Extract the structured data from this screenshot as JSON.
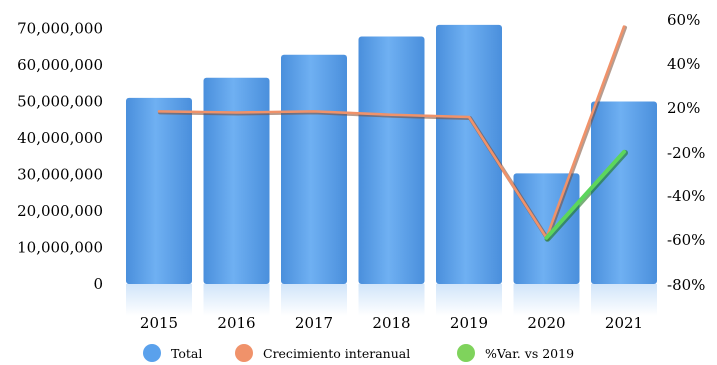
{
  "chart_data": {
    "type": "bar",
    "categories": [
      "2015",
      "2016",
      "2017",
      "2018",
      "2019",
      "2020",
      "2021"
    ],
    "series": [
      {
        "name": "Total",
        "type": "bar",
        "axis": "left",
        "color": "#5aa1ec",
        "values": [
          51000000,
          56500000,
          62800000,
          67800000,
          71000000,
          30300000,
          50000000
        ]
      },
      {
        "name": "Crecimiento interanual",
        "type": "line",
        "axis": "right",
        "color": "#f0926a",
        "x": [
          "2015",
          "2016",
          "2017",
          "2018",
          "2019",
          "2020",
          "2021"
        ],
        "values": [
          17,
          16,
          17,
          14,
          12,
          -59,
          57
        ]
      },
      {
        "name": "%Var. vs 2019",
        "type": "line",
        "axis": "right",
        "color": "#5cd65c",
        "x": [
          "2020",
          "2021"
        ],
        "values": [
          -59,
          -19
        ]
      }
    ],
    "y_left": {
      "ticks": [
        "0",
        "10,000,000",
        "20,000,000",
        "30,000,000",
        "40,000,000",
        "50,000,000",
        "60,000,000",
        "70,000,000"
      ],
      "tick_values": [
        0,
        10000000,
        20000000,
        30000000,
        40000000,
        50000000,
        60000000,
        70000000
      ]
    },
    "y_right": {
      "ticks": [
        "-80%",
        "-60%",
        "-40%",
        "-20%",
        "20%",
        "40%",
        "60%"
      ],
      "tick_values": [
        -80,
        -60,
        -40,
        -20,
        20,
        40,
        60
      ]
    },
    "legend": {
      "position": "bottom",
      "items": [
        {
          "label": "Total",
          "color": "#5aa1ec"
        },
        {
          "label": "Crecimiento interanual",
          "color": "#f0926a"
        },
        {
          "label": "%Var. vs 2019",
          "color": "#7fd35c"
        }
      ]
    },
    "grid": false
  }
}
